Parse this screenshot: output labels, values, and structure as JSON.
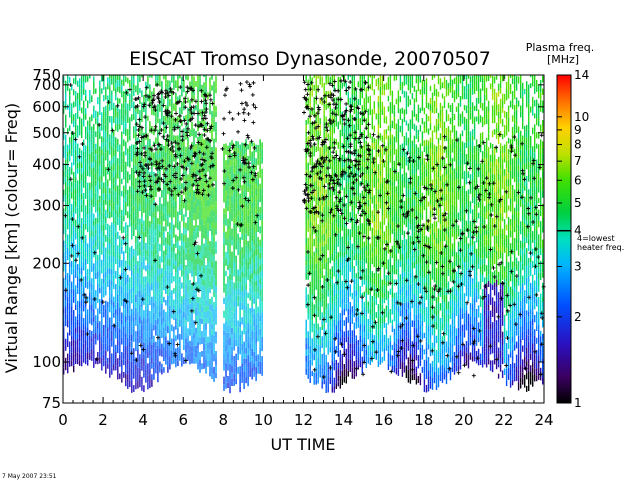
{
  "chart_data": {
    "type": "heatmap",
    "title": "EISCAT Tromso Dynasonde,  20070507",
    "xlabel": "UT TIME",
    "ylabel": "Virtual Range [km]   (colour= Freq)",
    "x_ticks": [
      0,
      2,
      4,
      6,
      8,
      10,
      12,
      14,
      16,
      18,
      20,
      22,
      24
    ],
    "xlim": [
      0,
      24
    ],
    "y_ticks": [
      75,
      100,
      200,
      300,
      400,
      500,
      600,
      700,
      750
    ],
    "ylim": [
      75,
      750
    ],
    "y_scale": "log",
    "data_gaps_ut": [
      [
        7.6,
        7.95
      ],
      [
        9.9,
        12.0
      ]
    ],
    "colorbar": {
      "title_line1": "Plasma freq.",
      "title_line2": "[MHz]",
      "ticks": [
        1,
        2,
        3,
        4,
        5,
        6,
        7,
        8,
        9,
        10,
        14
      ],
      "range": [
        1,
        14
      ],
      "scale": "log",
      "heater_marker_value": 4,
      "heater_label_line1": "4=lowest",
      "heater_label_line2": "heater freq."
    },
    "colors": {
      "low": "#1a0033",
      "mid": "#00b4ff",
      "high": "#ff2200",
      "markers": "#000000"
    },
    "footer_timestamp": "7 May 2007 23:51"
  }
}
